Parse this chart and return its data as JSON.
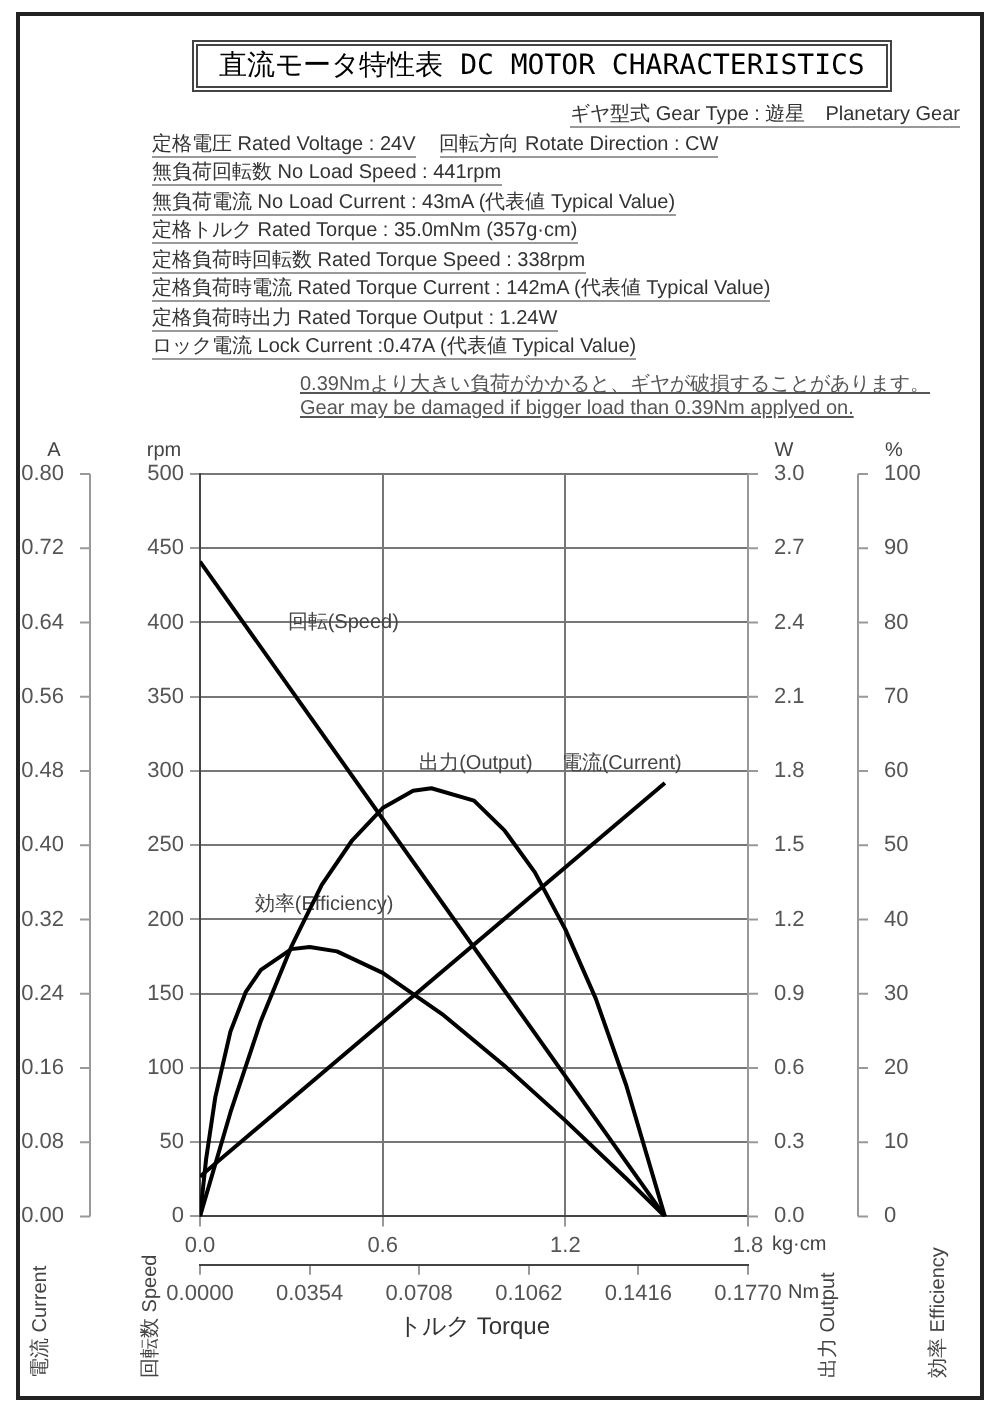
{
  "chart_data": [
    {
      "type": "line",
      "title": "直流モータ特性表 DC MOTOR CHARACTERISTICS",
      "annotations": [
        "ギヤ型式 Gear Type : 遊星　Planetary Gear",
        "定格電圧 Rated Voltage : 24V",
        "回転方向 Rotate Direction : CW",
        "無負荷回転数 No Load Speed : 441rpm",
        "無負荷電流 No Load Current : 43mA (代表値 Typical Value)",
        "定格トルク Rated Torque : 35.0mNm (357g·cm)",
        "定格負荷時回転数 Rated Torque Speed : 338rpm",
        "定格負荷時電流 Rated Torque Current : 142mA (代表値 Typical Value)",
        "定格負荷時出力 Rated Torque Output : 1.24W",
        "ロック電流 Lock Current :0.47A (代表値 Typical Value)",
        "0.39Nmより大きい負荷がかかると、ギヤが破損することがあります。",
        "Gear may be damaged if bigger load than 0.39Nm applyed on.",
        "rpm",
        "kg·cm",
        "Nm"
      ],
      "xlabel": "トルク Torque",
      "ylabel": "回転数 Speed",
      "xlim": [
        0,
        1.8
      ],
      "xticks": [
        {
          "value": 0,
          "label": "0.0"
        },
        0.6,
        1.2,
        {
          "value": 1.8,
          "label": "1.8"
        }
      ],
      "x2lim": [
        0,
        0.177
      ],
      "x2ticks": [
        {
          "value": 0,
          "label": "0.0000"
        },
        0.0354,
        0.0708,
        0.1062,
        0.1416,
        {
          "value": 0.177,
          "label": "0.1770"
        }
      ],
      "ylim": [
        0,
        500
      ],
      "yticks": [
        0,
        50,
        100,
        150,
        200,
        250,
        300,
        350,
        400,
        450,
        500
      ],
      "grid": true,
      "legend": false,
      "marker": "none",
      "line_style": "solid",
      "series": [
        {
          "name": "回転(Speed)",
          "color": "#000000",
          "x": [
            0,
            1.527
          ],
          "values": [
            441,
            0
          ]
        }
      ]
    },
    {
      "type": "line",
      "annotations": [
        "%"
      ],
      "ylabel": "効率 Efficiency",
      "tick_labels": "y",
      "xlim": [
        0,
        1.8
      ],
      "ylim": [
        0,
        100
      ],
      "yticks": [
        0,
        10,
        20,
        30,
        40,
        50,
        60,
        70,
        80,
        90,
        100
      ],
      "legend": false,
      "marker": "none",
      "line_style": "solid",
      "series": [
        {
          "name": "効率(Efficiency)",
          "color": "#000000",
          "x": [
            0,
            0.02,
            0.05,
            0.1,
            0.15,
            0.2,
            0.3,
            0.36,
            0.45,
            0.6,
            0.8,
            1.0,
            1.2,
            1.4,
            1.527
          ],
          "values": [
            0,
            7.7,
            16.0,
            24.9,
            30.2,
            33.2,
            36.0,
            36.3,
            35.7,
            32.8,
            27.1,
            20.3,
            12.9,
            5.1,
            0
          ]
        }
      ]
    },
    {
      "type": "line",
      "annotations": [
        "W"
      ],
      "ylabel": "出力 Output",
      "tick_labels": "y",
      "xlim": [
        0,
        1.8
      ],
      "ylim": [
        0,
        3
      ],
      "yticks": [
        {
          "value": 0,
          "label": "0.0"
        },
        0.3,
        0.6,
        0.9,
        1.2,
        1.5,
        1.8,
        2.1,
        2.4,
        2.7,
        {
          "value": 3,
          "label": "3.0"
        }
      ],
      "legend": false,
      "marker": "none",
      "line_style": "solid",
      "series": [
        {
          "name": "出力(Output)",
          "color": "#000000",
          "x": [
            0,
            0.1,
            0.2,
            0.3,
            0.4,
            0.5,
            0.6,
            0.7,
            0.76,
            0.9,
            1.0,
            1.1,
            1.2,
            1.3,
            1.4,
            1.527
          ],
          "values": [
            0,
            0.42,
            0.79,
            1.09,
            1.34,
            1.52,
            1.65,
            1.72,
            1.73,
            1.68,
            1.56,
            1.39,
            1.16,
            0.88,
            0.53,
            0
          ]
        }
      ]
    },
    {
      "type": "line",
      "annotations": [
        "A"
      ],
      "ylabel": "電流 Current",
      "tick_labels": "y",
      "xlim": [
        0,
        1.8
      ],
      "ylim": [
        0,
        0.8
      ],
      "yticks": [
        {
          "value": 0,
          "label": "0.00"
        },
        0.08,
        0.16,
        0.24,
        0.32,
        {
          "value": 0.4,
          "label": "0.40"
        },
        0.48,
        0.56,
        0.64,
        0.72,
        {
          "value": 0.8,
          "label": "0.80"
        }
      ],
      "legend": false,
      "marker": "none",
      "line_style": "solid",
      "series": [
        {
          "name": "電流(Current)",
          "color": "#000000",
          "x": [
            0,
            1.527
          ],
          "values": [
            0.043,
            0.467
          ]
        }
      ]
    }
  ]
}
